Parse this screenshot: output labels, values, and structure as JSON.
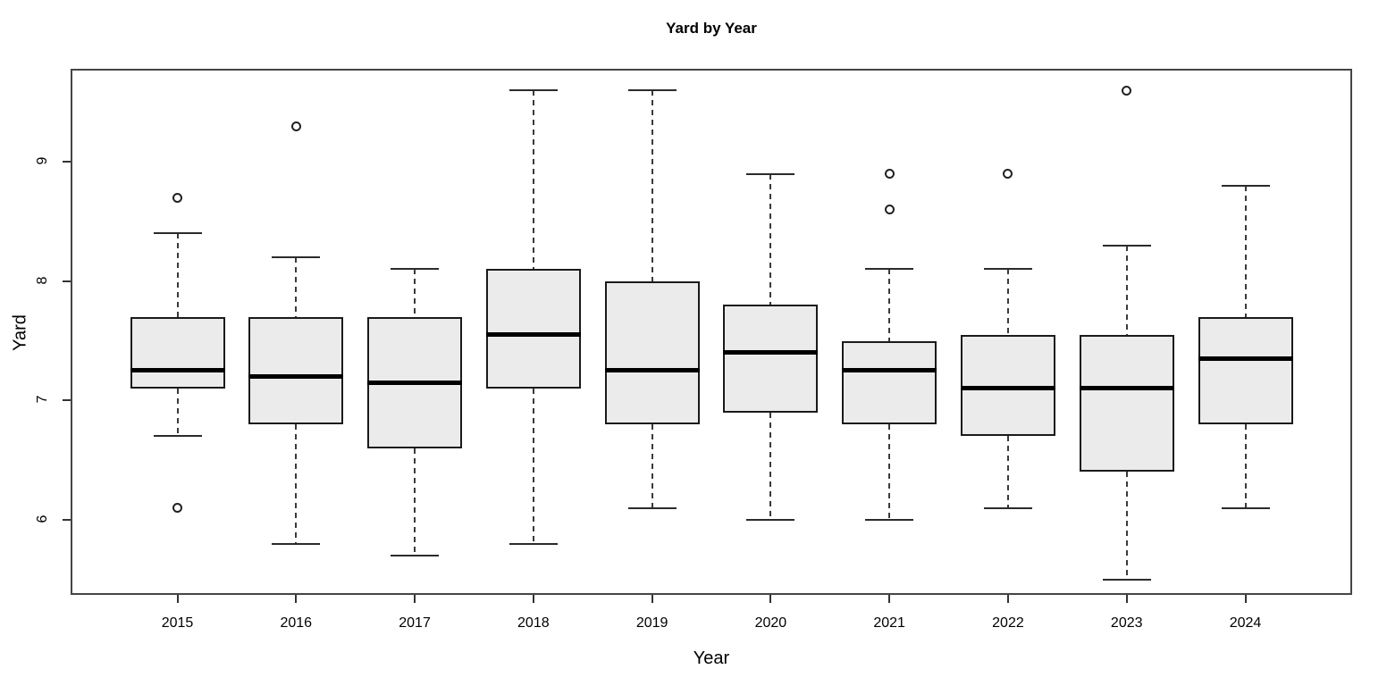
{
  "title": "Yard by Year",
  "axes": {
    "x_label": "Year",
    "y_label": "Yard"
  },
  "colors": {
    "background": "#ffffff",
    "box_fill": "#ebebeb",
    "box_border": "#1a1a1a",
    "median": "#000000",
    "whisker": "#3a3a3a",
    "frame": "#454545",
    "text": "#000000"
  },
  "chart_data": {
    "type": "boxplot",
    "title": "Yard by Year",
    "xlabel": "Year",
    "ylabel": "Yard",
    "ylim": [
      5.37,
      9.78
    ],
    "y_ticks": [
      6,
      7,
      8,
      9
    ],
    "grid": false,
    "legend": false,
    "categories": [
      "2015",
      "2016",
      "2017",
      "2018",
      "2019",
      "2020",
      "2021",
      "2022",
      "2023",
      "2024"
    ],
    "series": [
      {
        "year": "2015",
        "whisker_low": 6.7,
        "q1": 7.1,
        "median": 7.25,
        "q3": 7.7,
        "whisker_high": 8.4,
        "outliers": [
          8.7,
          6.1
        ]
      },
      {
        "year": "2016",
        "whisker_low": 5.8,
        "q1": 6.8,
        "median": 7.2,
        "q3": 7.7,
        "whisker_high": 8.2,
        "outliers": [
          9.3
        ]
      },
      {
        "year": "2017",
        "whisker_low": 5.7,
        "q1": 6.6,
        "median": 7.15,
        "q3": 7.7,
        "whisker_high": 8.1,
        "outliers": []
      },
      {
        "year": "2018",
        "whisker_low": 5.8,
        "q1": 7.1,
        "median": 7.55,
        "q3": 8.1,
        "whisker_high": 9.6,
        "outliers": []
      },
      {
        "year": "2019",
        "whisker_low": 6.1,
        "q1": 6.8,
        "median": 7.25,
        "q3": 8.0,
        "whisker_high": 9.6,
        "outliers": []
      },
      {
        "year": "2020",
        "whisker_low": 6.0,
        "q1": 6.9,
        "median": 7.4,
        "q3": 7.8,
        "whisker_high": 8.9,
        "outliers": []
      },
      {
        "year": "2021",
        "whisker_low": 6.0,
        "q1": 6.8,
        "median": 7.25,
        "q3": 7.5,
        "whisker_high": 8.1,
        "outliers": [
          8.9,
          8.6
        ]
      },
      {
        "year": "2022",
        "whisker_low": 6.1,
        "q1": 6.7,
        "median": 7.1,
        "q3": 7.55,
        "whisker_high": 8.1,
        "outliers": [
          8.9
        ]
      },
      {
        "year": "2023",
        "whisker_low": 5.5,
        "q1": 6.4,
        "median": 7.1,
        "q3": 7.55,
        "whisker_high": 8.3,
        "outliers": [
          9.6
        ]
      },
      {
        "year": "2024",
        "whisker_low": 6.1,
        "q1": 6.8,
        "median": 7.35,
        "q3": 7.7,
        "whisker_high": 8.8,
        "outliers": []
      }
    ]
  }
}
